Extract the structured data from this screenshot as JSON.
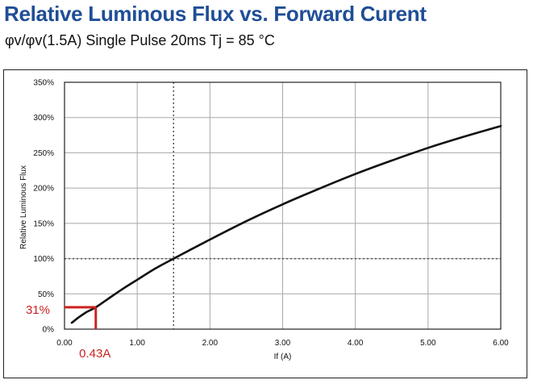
{
  "header": {
    "title": "Relative Luminous Flux vs. Forward Curent",
    "subtitle": "φv/φv(1.5A)  Single Pulse 20ms  Tj = 85 °C"
  },
  "chart_data": {
    "type": "line",
    "title": "Relative Luminous Flux vs. Forward Curent",
    "subtitle": "φv/φv(1.5A)  Single Pulse 20ms  Tj = 85 °C",
    "xlabel": "If (A)",
    "ylabel": "Relative Luminous Flux",
    "xlim": [
      0,
      6
    ],
    "ylim": [
      0,
      350
    ],
    "x_ticks": [
      0,
      1,
      2,
      3,
      4,
      5,
      6
    ],
    "x_tick_labels": [
      "0.00",
      "1.00",
      "2.00",
      "3.00",
      "4.00",
      "5.00",
      "6.00"
    ],
    "y_ticks": [
      0,
      50,
      100,
      150,
      200,
      250,
      300,
      350
    ],
    "y_tick_labels": [
      "0%",
      "50%",
      "100%",
      "150%",
      "200%",
      "250%",
      "300%",
      "350%"
    ],
    "grid": true,
    "series": [
      {
        "x": [
          0.1,
          0.2,
          0.3,
          0.43,
          0.6,
          0.8,
          1.0,
          1.25,
          1.5,
          2.0,
          2.5,
          3.0,
          3.5,
          4.0,
          4.5,
          5.0,
          5.5,
          6.0
        ],
        "y": [
          9,
          17,
          24,
          31,
          43,
          57,
          70,
          86,
          100,
          127,
          153,
          177,
          199,
          220,
          239,
          257,
          273,
          288
        ],
        "color": "#111111"
      }
    ],
    "reference_lines": [
      {
        "axis": "x",
        "value": 1.5,
        "style": "dotted"
      },
      {
        "axis": "y",
        "value": 100,
        "style": "dotted"
      }
    ],
    "annotations": [
      {
        "x": 0.43,
        "y": 31,
        "x_label": "0.43A",
        "y_label": "31%",
        "color": "#cc2222"
      }
    ]
  }
}
